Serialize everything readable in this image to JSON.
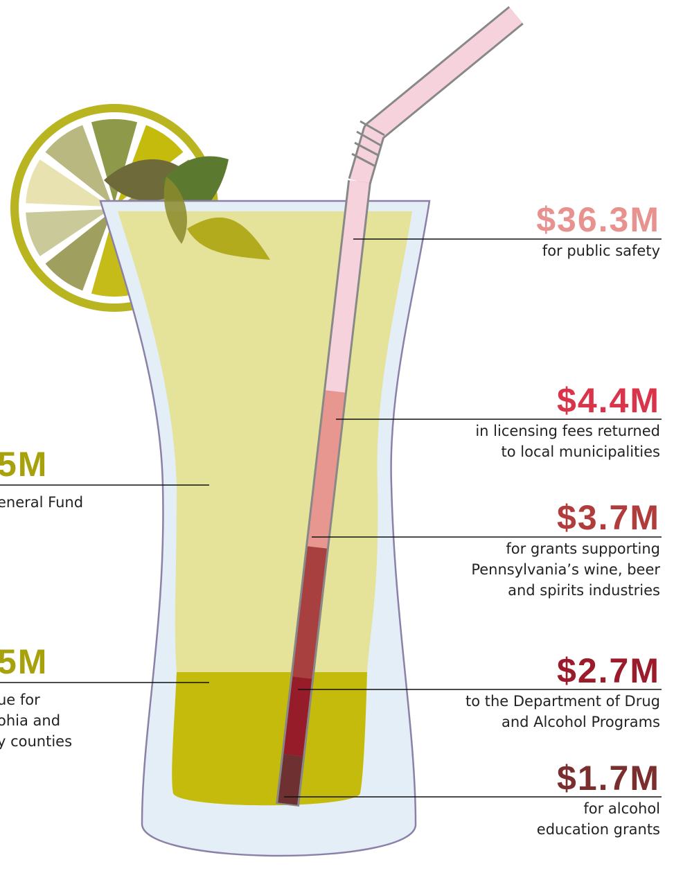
{
  "right_callouts": [
    {
      "amount": "$36.3M",
      "description": [
        "for public safety"
      ]
    },
    {
      "amount": "$4.4M",
      "description": [
        "in licensing fees returned",
        "to local municipalities"
      ]
    },
    {
      "amount": "$3.7M",
      "description": [
        "for grants supporting",
        "Pennsylvania’s wine, beer",
        "and spirits industries"
      ]
    },
    {
      "amount": "$2.7M",
      "description": [
        "to the Department of Drug",
        "and Alcohol Programs"
      ]
    },
    {
      "amount": "$1.7M",
      "description": [
        "for alcohol",
        "education grants"
      ]
    }
  ],
  "left_callouts": [
    {
      "amount": "5M",
      "description": [
        "eneral Fund"
      ]
    },
    {
      "amount": "5M",
      "description": [
        "ue for",
        "ohia and",
        "y counties"
      ]
    }
  ]
}
